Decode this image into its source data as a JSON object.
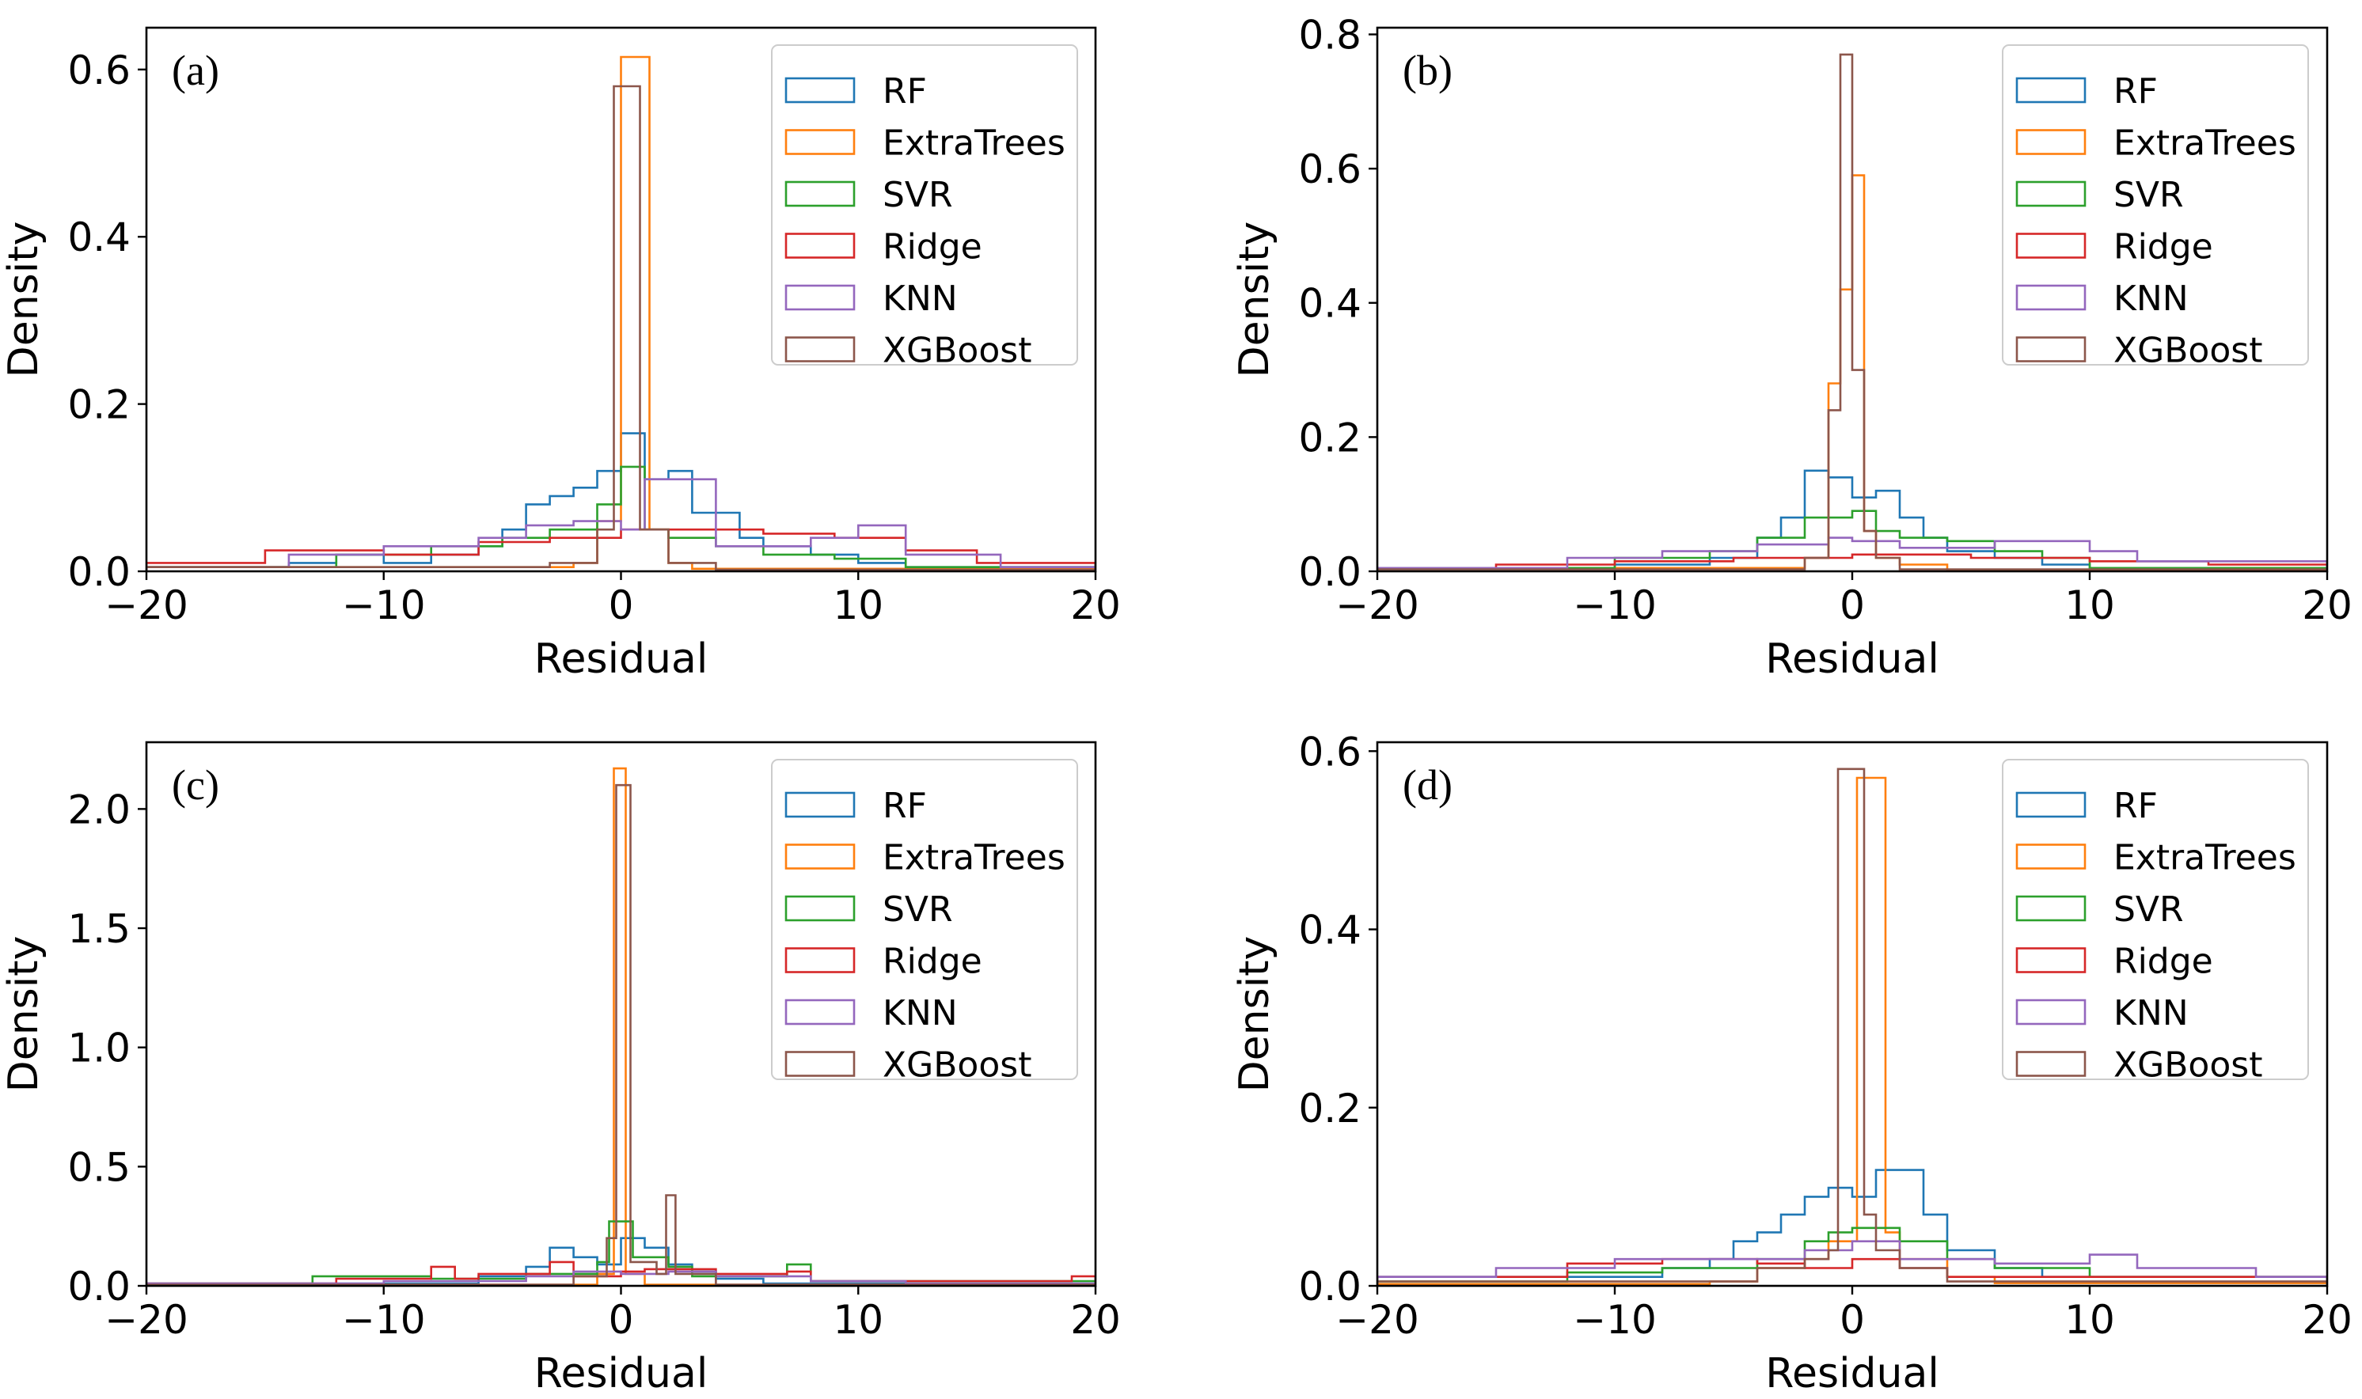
{
  "colors": {
    "RF": "#1f77b4",
    "ExtraTrees": "#ff7f0e",
    "SVR": "#2ca02c",
    "Ridge": "#d62728",
    "KNN": "#9467bd",
    "XGBoost": "#8c564b"
  },
  "chart_data": [
    {
      "type": "histogram",
      "panel_label": "(a)",
      "xlabel": "Residual",
      "ylabel": "Density",
      "xlim": [
        -20,
        20
      ],
      "ylim": [
        0,
        0.65
      ],
      "xticks": [
        -20,
        -10,
        0,
        10,
        20
      ],
      "xtick_labels": [
        "−20",
        "−10",
        "0",
        "10",
        "20"
      ],
      "yticks": [
        0,
        0.2,
        0.4,
        0.6
      ],
      "ytick_labels": [
        "0.0",
        "0.2",
        "0.4",
        "0.6"
      ],
      "legend": [
        "RF",
        "ExtraTrees",
        "SVR",
        "Ridge",
        "KNN",
        "XGBoost"
      ],
      "legend_position": "top-right",
      "series": [
        {
          "name": "RF",
          "edges": [
            -20,
            -14,
            -12,
            -10,
            -8,
            -6,
            -5,
            -4,
            -3,
            -2,
            -1,
            0,
            1,
            2,
            3,
            5,
            6,
            8,
            10,
            12,
            20
          ],
          "values": [
            0.005,
            0.01,
            0.02,
            0.01,
            0.02,
            0.03,
            0.05,
            0.08,
            0.09,
            0.1,
            0.12,
            0.165,
            0.11,
            0.12,
            0.07,
            0.04,
            0.03,
            0.02,
            0.01,
            0.005
          ]
        },
        {
          "name": "ExtraTrees",
          "edges": [
            -20,
            -2,
            -1,
            0,
            1.2,
            2,
            3,
            20
          ],
          "values": [
            0.005,
            0.01,
            0.06,
            0.615,
            0.05,
            0.01,
            0.003
          ]
        },
        {
          "name": "SVR",
          "edges": [
            -20,
            -12,
            -8,
            -5,
            -3,
            -1,
            0,
            1,
            2,
            4,
            6,
            9,
            12,
            20
          ],
          "values": [
            0.005,
            0.02,
            0.03,
            0.04,
            0.05,
            0.08,
            0.125,
            0.05,
            0.04,
            0.03,
            0.02,
            0.015,
            0.005
          ]
        },
        {
          "name": "Ridge",
          "edges": [
            -20,
            -15,
            -10,
            -6,
            -3,
            0,
            2,
            6,
            9,
            12,
            15,
            20
          ],
          "values": [
            0.01,
            0.025,
            0.02,
            0.035,
            0.04,
            0.05,
            0.05,
            0.045,
            0.04,
            0.025,
            0.01
          ]
        },
        {
          "name": "KNN",
          "edges": [
            -20,
            -14,
            -10,
            -6,
            -4,
            -2,
            0,
            1,
            4,
            8,
            10,
            12,
            16,
            20
          ],
          "values": [
            0.005,
            0.02,
            0.03,
            0.04,
            0.055,
            0.06,
            0.05,
            0.11,
            0.03,
            0.04,
            0.055,
            0.02,
            0.005
          ]
        },
        {
          "name": "XGBoost",
          "edges": [
            -20,
            -3,
            -1,
            -0.3,
            0.8,
            2,
            4,
            20
          ],
          "values": [
            0.005,
            0.01,
            0.05,
            0.58,
            0.05,
            0.01,
            0.002
          ]
        }
      ]
    },
    {
      "type": "histogram",
      "panel_label": "(b)",
      "xlabel": "Residual",
      "ylabel": "Density",
      "xlim": [
        -20,
        20
      ],
      "ylim": [
        0,
        0.81
      ],
      "xticks": [
        -20,
        -10,
        0,
        10,
        20
      ],
      "xtick_labels": [
        "−20",
        "−10",
        "0",
        "10",
        "20"
      ],
      "yticks": [
        0,
        0.2,
        0.4,
        0.6,
        0.8
      ],
      "ytick_labels": [
        "0.0",
        "0.2",
        "0.4",
        "0.6",
        "0.8"
      ],
      "legend": [
        "RF",
        "ExtraTrees",
        "SVR",
        "Ridge",
        "KNN",
        "XGBoost"
      ],
      "legend_position": "top-right",
      "series": [
        {
          "name": "RF",
          "edges": [
            -20,
            -10,
            -6,
            -4,
            -3,
            -2,
            -1,
            0,
            1,
            2,
            3,
            4,
            6,
            8,
            10,
            20
          ],
          "values": [
            0.005,
            0.01,
            0.02,
            0.05,
            0.08,
            0.15,
            0.14,
            0.11,
            0.12,
            0.08,
            0.05,
            0.03,
            0.02,
            0.01,
            0.005
          ]
        },
        {
          "name": "ExtraTrees",
          "edges": [
            -20,
            -2,
            -1,
            -0.5,
            0,
            0.5,
            1,
            2,
            4,
            20
          ],
          "values": [
            0.005,
            0.02,
            0.28,
            0.42,
            0.59,
            0.06,
            0.02,
            0.01,
            0.002
          ]
        },
        {
          "name": "SVR",
          "edges": [
            -20,
            -10,
            -6,
            -4,
            -2,
            0,
            1,
            2,
            4,
            6,
            8,
            10,
            20
          ],
          "values": [
            0.005,
            0.02,
            0.03,
            0.05,
            0.08,
            0.09,
            0.06,
            0.05,
            0.045,
            0.03,
            0.02,
            0.005
          ]
        },
        {
          "name": "Ridge",
          "edges": [
            -20,
            -15,
            -10,
            -5,
            0,
            5,
            10,
            15,
            20
          ],
          "values": [
            0.005,
            0.01,
            0.015,
            0.02,
            0.025,
            0.02,
            0.015,
            0.01
          ]
        },
        {
          "name": "KNN",
          "edges": [
            -20,
            -12,
            -8,
            -4,
            -1,
            0,
            2,
            6,
            10,
            12,
            20
          ],
          "values": [
            0.005,
            0.02,
            0.03,
            0.04,
            0.05,
            0.045,
            0.035,
            0.045,
            0.03,
            0.015
          ]
        },
        {
          "name": "XGBoost",
          "edges": [
            -20,
            -2,
            -1,
            -0.5,
            0,
            0.5,
            1,
            2,
            20
          ],
          "values": [
            0.003,
            0.02,
            0.24,
            0.77,
            0.3,
            0.06,
            0.02,
            0.003
          ]
        }
      ]
    },
    {
      "type": "histogram",
      "panel_label": "(c)",
      "xlabel": "Residual",
      "ylabel": "Density",
      "xlim": [
        -20,
        20
      ],
      "ylim": [
        0,
        2.28
      ],
      "xticks": [
        -20,
        -10,
        0,
        10,
        20
      ],
      "xtick_labels": [
        "−20",
        "−10",
        "0",
        "10",
        "20"
      ],
      "yticks": [
        0,
        0.5,
        1.0,
        1.5,
        2.0
      ],
      "ytick_labels": [
        "0.0",
        "0.5",
        "1.0",
        "1.5",
        "2.0"
      ],
      "legend": [
        "RF",
        "ExtraTrees",
        "SVR",
        "Ridge",
        "KNN",
        "XGBoost"
      ],
      "legend_position": "top-right",
      "series": [
        {
          "name": "RF",
          "edges": [
            -20,
            -6,
            -4,
            -3,
            -2,
            -1,
            0,
            1,
            2,
            3,
            4,
            6,
            20
          ],
          "values": [
            0.01,
            0.04,
            0.08,
            0.16,
            0.12,
            0.09,
            0.2,
            0.16,
            0.09,
            0.06,
            0.03,
            0.01
          ]
        },
        {
          "name": "ExtraTrees",
          "edges": [
            -20,
            -1,
            -0.3,
            0.2,
            1,
            20
          ],
          "values": [
            0.005,
            0.05,
            2.17,
            0.05,
            0.005
          ]
        },
        {
          "name": "SVR",
          "edges": [
            -20,
            -13,
            -8,
            -4,
            -1,
            -0.5,
            0.5,
            2,
            3,
            7,
            8,
            20
          ],
          "values": [
            0.01,
            0.04,
            0.03,
            0.05,
            0.1,
            0.27,
            0.12,
            0.08,
            0.04,
            0.09,
            0.02
          ]
        },
        {
          "name": "Ridge",
          "edges": [
            -20,
            -12,
            -8,
            -7,
            -6,
            -3,
            -2,
            0,
            1,
            4,
            7,
            8,
            19,
            20
          ],
          "values": [
            0.01,
            0.03,
            0.08,
            0.03,
            0.05,
            0.1,
            0.04,
            0.06,
            0.07,
            0.05,
            0.06,
            0.02,
            0.04
          ]
        },
        {
          "name": "KNN",
          "edges": [
            -20,
            -10,
            -4,
            -2,
            0,
            2,
            4,
            8,
            12,
            20
          ],
          "values": [
            0.01,
            0.02,
            0.04,
            0.06,
            0.05,
            0.06,
            0.04,
            0.02,
            0.01
          ]
        },
        {
          "name": "XGBoost",
          "edges": [
            -20,
            -2,
            -0.6,
            -0.2,
            0.4,
            1.5,
            1.9,
            2.3,
            4,
            20
          ],
          "values": [
            0.005,
            0.04,
            0.2,
            2.1,
            0.1,
            0.05,
            0.38,
            0.05,
            0.005
          ]
        }
      ]
    },
    {
      "type": "histogram",
      "panel_label": "(d)",
      "xlabel": "Residual",
      "ylabel": "Density",
      "xlim": [
        -20,
        20
      ],
      "ylim": [
        0,
        0.61
      ],
      "xticks": [
        -20,
        -10,
        0,
        10,
        20
      ],
      "xtick_labels": [
        "−20",
        "−10",
        "0",
        "10",
        "20"
      ],
      "yticks": [
        0,
        0.2,
        0.4,
        0.6
      ],
      "ytick_labels": [
        "0.0",
        "0.2",
        "0.4",
        "0.6"
      ],
      "legend": [
        "RF",
        "ExtraTrees",
        "SVR",
        "Ridge",
        "KNN",
        "XGBoost"
      ],
      "legend_position": "top-right",
      "series": [
        {
          "name": "RF",
          "edges": [
            -20,
            -8,
            -6,
            -5,
            -4,
            -3,
            -2,
            -1,
            0,
            1,
            2,
            3,
            4,
            6,
            8,
            20
          ],
          "values": [
            0.01,
            0.02,
            0.03,
            0.05,
            0.06,
            0.08,
            0.1,
            0.11,
            0.1,
            0.13,
            0.13,
            0.08,
            0.04,
            0.02,
            0.01
          ]
        },
        {
          "name": "ExtraTrees",
          "edges": [
            -20,
            -6,
            -4,
            -2,
            -1,
            0.2,
            1.4,
            2,
            4,
            6,
            20
          ],
          "values": [
            0.002,
            0.005,
            0.02,
            0.03,
            0.05,
            0.57,
            0.06,
            0.03,
            0.01,
            0.003
          ]
        },
        {
          "name": "SVR",
          "edges": [
            -20,
            -12,
            -8,
            -4,
            -2,
            -1,
            0,
            2,
            4,
            6,
            10,
            20
          ],
          "values": [
            0.005,
            0.015,
            0.02,
            0.03,
            0.05,
            0.06,
            0.065,
            0.05,
            0.03,
            0.02,
            0.01
          ]
        },
        {
          "name": "Ridge",
          "edges": [
            -20,
            -12,
            -8,
            -4,
            -2,
            0,
            2,
            4,
            20
          ],
          "values": [
            0.01,
            0.025,
            0.03,
            0.025,
            0.02,
            0.03,
            0.02,
            0.01
          ]
        },
        {
          "name": "KNN",
          "edges": [
            -20,
            -15,
            -10,
            -5,
            -2,
            0,
            2,
            6,
            10,
            12,
            17,
            20
          ],
          "values": [
            0.01,
            0.02,
            0.03,
            0.03,
            0.04,
            0.05,
            0.03,
            0.025,
            0.035,
            0.02,
            0.01
          ]
        },
        {
          "name": "XGBoost",
          "edges": [
            -20,
            -4,
            -2,
            -1,
            -0.6,
            0.5,
            1,
            2,
            4,
            20
          ],
          "values": [
            0.005,
            0.02,
            0.03,
            0.04,
            0.58,
            0.08,
            0.04,
            0.02,
            0.005
          ]
        }
      ]
    }
  ]
}
